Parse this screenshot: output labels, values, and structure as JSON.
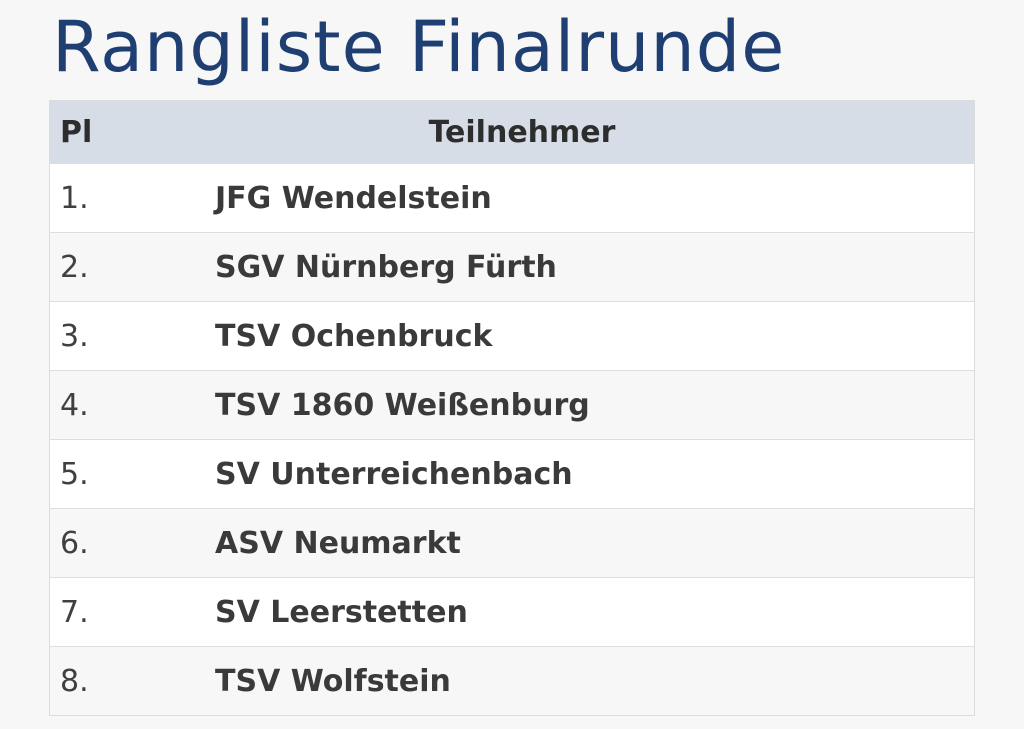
{
  "page": {
    "title": "Rangliste Finalrunde"
  },
  "table": {
    "headers": {
      "place": "Pl",
      "team": "Teilnehmer"
    },
    "rows": [
      {
        "place": "1.",
        "team": "JFG Wendelstein"
      },
      {
        "place": "2.",
        "team": "SGV Nürnberg Fürth"
      },
      {
        "place": "3.",
        "team": "TSV Ochenbruck"
      },
      {
        "place": "4.",
        "team": "TSV 1860 Weißenburg"
      },
      {
        "place": "5.",
        "team": "SV Unterreichenbach"
      },
      {
        "place": "6.",
        "team": "ASV Neumarkt"
      },
      {
        "place": "7.",
        "team": "SV Leerstetten"
      },
      {
        "place": "8.",
        "team": "TSV Wolfstein"
      }
    ]
  },
  "colors": {
    "title": "#1f3f72",
    "header_bg": "#d6dde6",
    "row_alt_bg": "#f7f7f7"
  }
}
